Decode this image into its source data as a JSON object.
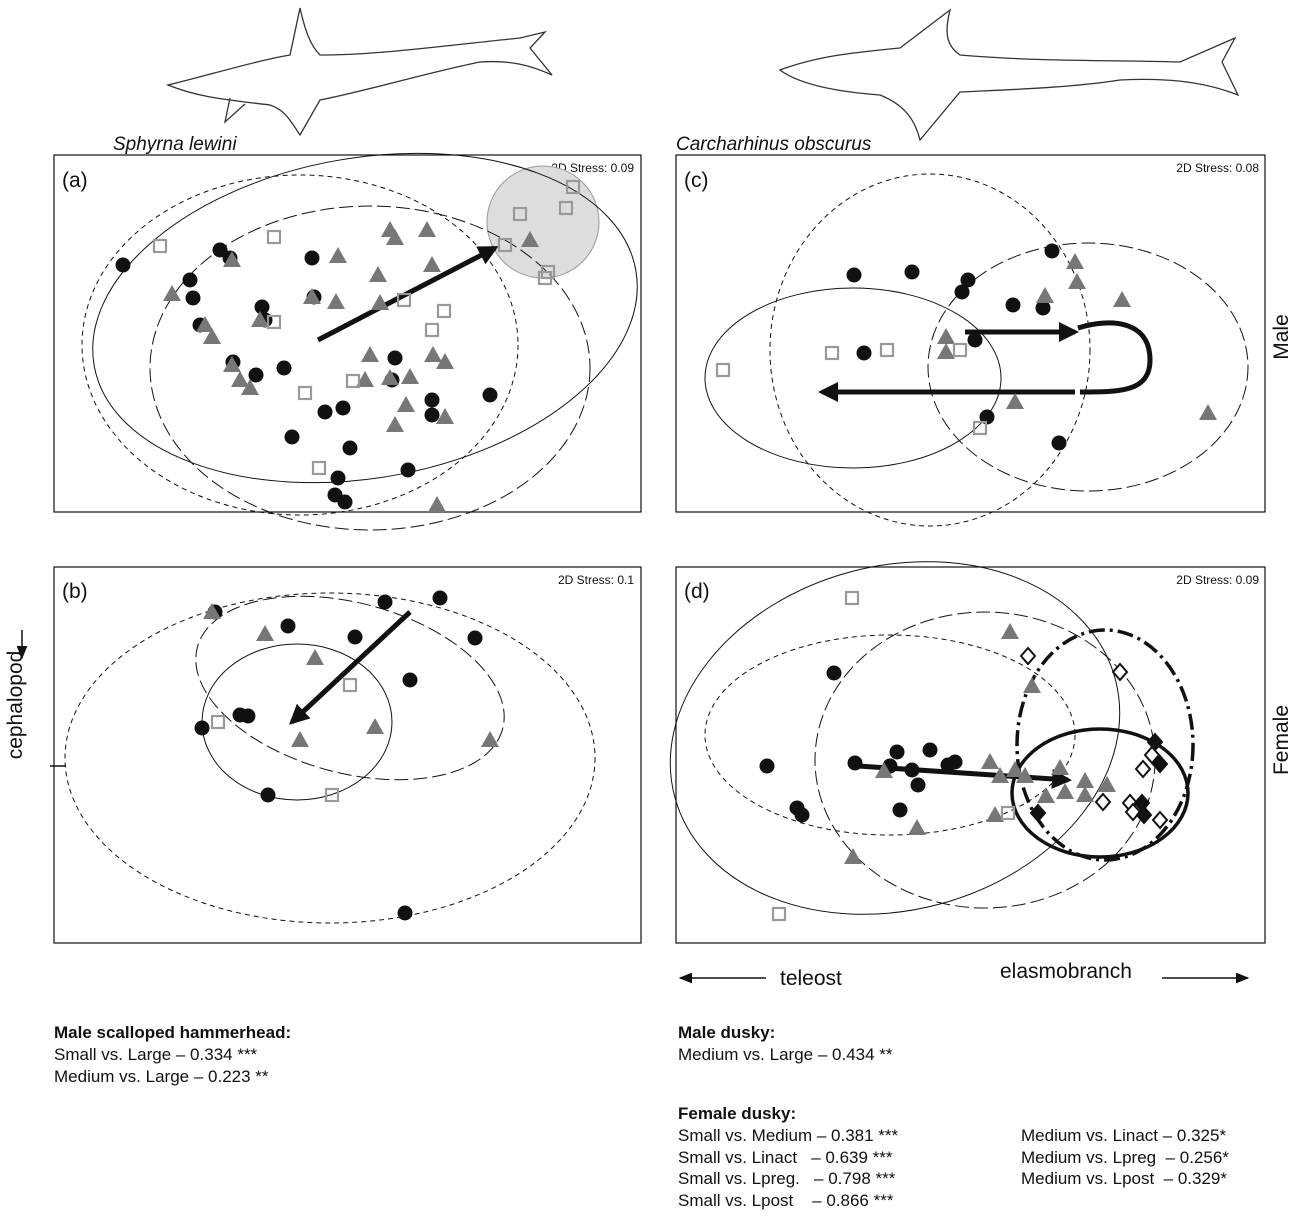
{
  "species": [
    "Sphyrna lewini",
    "Carcharhinus obscurus"
  ],
  "panels": [
    {
      "label": "(a)",
      "stress": "2D Stress: 0.09"
    },
    {
      "label": "(b)",
      "stress": "2D Stress: 0.1"
    },
    {
      "label": "(c)",
      "stress": "2D Stress: 0.08"
    },
    {
      "label": "(d)",
      "stress": "2D Stress: 0.09"
    }
  ],
  "rows": [
    "Male",
    "Female"
  ],
  "axes": {
    "y": "cephalopod",
    "x_left": "teleost",
    "x_right": "elasmobranch"
  },
  "stats": [
    {
      "title": "Male scalloped hammerhead:",
      "lines": [
        "Small vs. Large – 0.334 ***",
        "Medium vs. Large – 0.223 **"
      ]
    },
    {
      "title": "Male dusky:",
      "lines": [
        "Medium vs. Large – 0.434 **"
      ]
    },
    {
      "title": "Female dusky:",
      "lines": [
        "Small vs. Medium – 0.381 ***",
        "Small vs. Linact   – 0.639 ***",
        "Small vs. Lpreg.   – 0.798 ***",
        "Small vs. Lpost    – 0.866 ***",
        "Medium vs. Linact – 0.325*",
        "Medium vs. Lpreg  – 0.256*",
        "Medium vs. Lpost  – 0.329*"
      ]
    }
  ]
}
